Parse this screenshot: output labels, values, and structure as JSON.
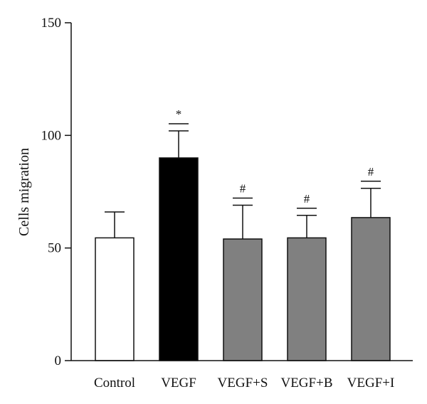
{
  "chart_data": {
    "type": "bar",
    "ylabel": "Cells migration",
    "ylim": [
      0,
      150
    ],
    "yticks": [
      0,
      50,
      100,
      150
    ],
    "categories": [
      "Control",
      "VEGF",
      "VEGF+S",
      "VEGF+B",
      "VEGF+I"
    ],
    "values": [
      54.5,
      90,
      54,
      54.5,
      63.5
    ],
    "errors": [
      11.5,
      12,
      15,
      10,
      13
    ],
    "significance": [
      "",
      "*",
      "#",
      "#",
      "#"
    ],
    "bar_colors": [
      "#ffffff",
      "#000000",
      "#808080",
      "#808080",
      "#808080"
    ],
    "grid": false,
    "legend": "none"
  }
}
